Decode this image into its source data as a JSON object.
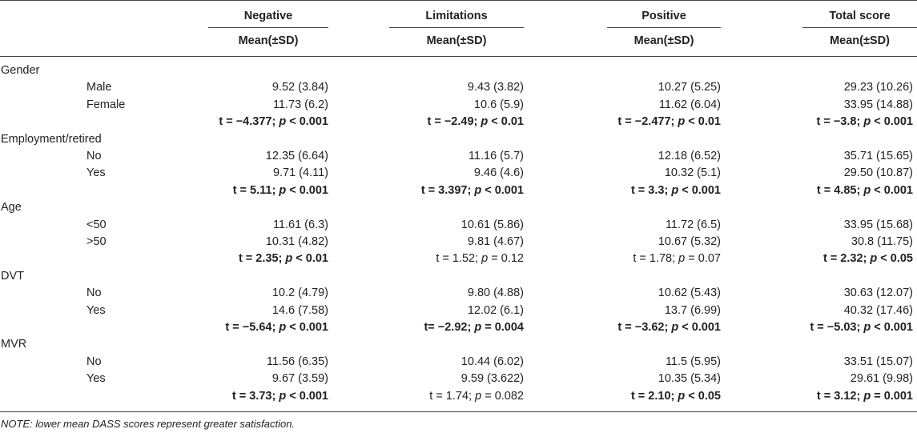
{
  "header": {
    "columns": [
      "Negative",
      "Limitations",
      "Positive",
      "Total score"
    ],
    "subheader": "Mean(±SD)"
  },
  "groups": [
    {
      "name": "Gender",
      "rows": [
        {
          "label": "Male",
          "values": [
            "9.52 (3.84)",
            "9.43 (3.82)",
            "10.27 (5.25)",
            "29.23 (10.26)"
          ]
        },
        {
          "label": "Female",
          "values": [
            "11.73 (6.2)",
            "10.6 (5.9)",
            "11.62 (6.04)",
            "33.95 (14.88)"
          ]
        }
      ],
      "stats": [
        {
          "t": "t = −4.377;",
          "p": "p",
          "rest": " < 0.001",
          "bold": true
        },
        {
          "t": "t = −2.49;",
          "p": "p",
          "rest": " < 0.01",
          "bold": true
        },
        {
          "t": "t = −2.477;",
          "p": "p",
          "rest": " < 0.01",
          "bold": true
        },
        {
          "t": "t = −3.8;",
          "p": "p",
          "rest": " < 0.001",
          "bold": true
        }
      ]
    },
    {
      "name": "Employment/retired",
      "rows": [
        {
          "label": "No",
          "values": [
            "12.35 (6.64)",
            "11.16 (5.7)",
            "12.18 (6.52)",
            "35.71 (15.65)"
          ]
        },
        {
          "label": "Yes",
          "values": [
            "9.71 (4.11)",
            "9.46 (4.6)",
            "10.32 (5.1)",
            "29.50 (10.87)"
          ]
        }
      ],
      "stats": [
        {
          "t": "t = 5.11;",
          "p": "p",
          "rest": " < 0.001",
          "bold": true
        },
        {
          "t": "t = 3.397;",
          "p": "p",
          "rest": " < 0.001",
          "bold": true
        },
        {
          "t": "t = 3.3;",
          "p": "p",
          "rest": " < 0.001",
          "bold": true
        },
        {
          "t": "t = 4.85;",
          "p": "p",
          "rest": " < 0.001",
          "bold": true
        }
      ]
    },
    {
      "name": "Age",
      "rows": [
        {
          "label": "<50",
          "values": [
            "11.61 (6.3)",
            "10.61 (5.86)",
            "11.72 (6.5)",
            "33.95 (15.68)"
          ]
        },
        {
          "label": ">50",
          "values": [
            "10.31 (4.82)",
            "9.81 (4.67)",
            "10.67 (5.32)",
            "30.8 (11.75)"
          ]
        }
      ],
      "stats": [
        {
          "t": "t = 2.35;",
          "p": "p",
          "rest": " < 0.01",
          "bold": true
        },
        {
          "t": "t = 1.52;",
          "p": "p",
          "rest": " = 0.12",
          "bold": false
        },
        {
          "t": "t = 1.78;",
          "p": "p",
          "rest": " = 0.07",
          "bold": false
        },
        {
          "t": "t = 2.32;",
          "p": "p",
          "rest": " < 0.05",
          "bold": true
        }
      ]
    },
    {
      "name": "DVT",
      "rows": [
        {
          "label": "No",
          "values": [
            "10.2 (4.79)",
            "9.80 (4.88)",
            "10.62 (5.43)",
            "30.63 (12.07)"
          ]
        },
        {
          "label": "Yes",
          "values": [
            "14.6 (7.58)",
            "12.02 (6.1)",
            "13.7 (6.99)",
            "40.32 (17.46)"
          ]
        }
      ],
      "stats": [
        {
          "t": "t = −5.64;",
          "p": "p",
          "rest": " < 0.001",
          "bold": true
        },
        {
          "t": "t= −2.92;",
          "p": "p",
          "rest": " = 0.004",
          "bold": true
        },
        {
          "t": "t = −3.62;",
          "p": "p",
          "rest": " < 0.001",
          "bold": true
        },
        {
          "t": "t = −5.03;",
          "p": "p",
          "rest": " < 0.001",
          "bold": true
        }
      ]
    },
    {
      "name": "MVR",
      "rows": [
        {
          "label": "No",
          "values": [
            "11.56 (6.35)",
            "10.44 (6.02)",
            "11.5 (5.95)",
            "33.51 (15.07)"
          ]
        },
        {
          "label": "Yes",
          "values": [
            "9.67 (3.59)",
            "9.59 (3.622)",
            "10.35 (5.34)",
            "29.61 (9.98)"
          ]
        }
      ],
      "stats": [
        {
          "t": "t = 3.73;",
          "p": "p",
          "rest": " < 0.001",
          "bold": true
        },
        {
          "t": "t = 1.74;",
          "p": "p",
          "rest": " = 0.082",
          "bold": false
        },
        {
          "t": "t = 2.10;",
          "p": "p",
          "rest": " < 0.05",
          "bold": true
        },
        {
          "t": "t = 3.12;",
          "p": "p",
          "rest": " = 0.001",
          "bold": true
        }
      ]
    }
  ],
  "note": "NOTE: lower mean DASS scores represent greater satisfaction."
}
